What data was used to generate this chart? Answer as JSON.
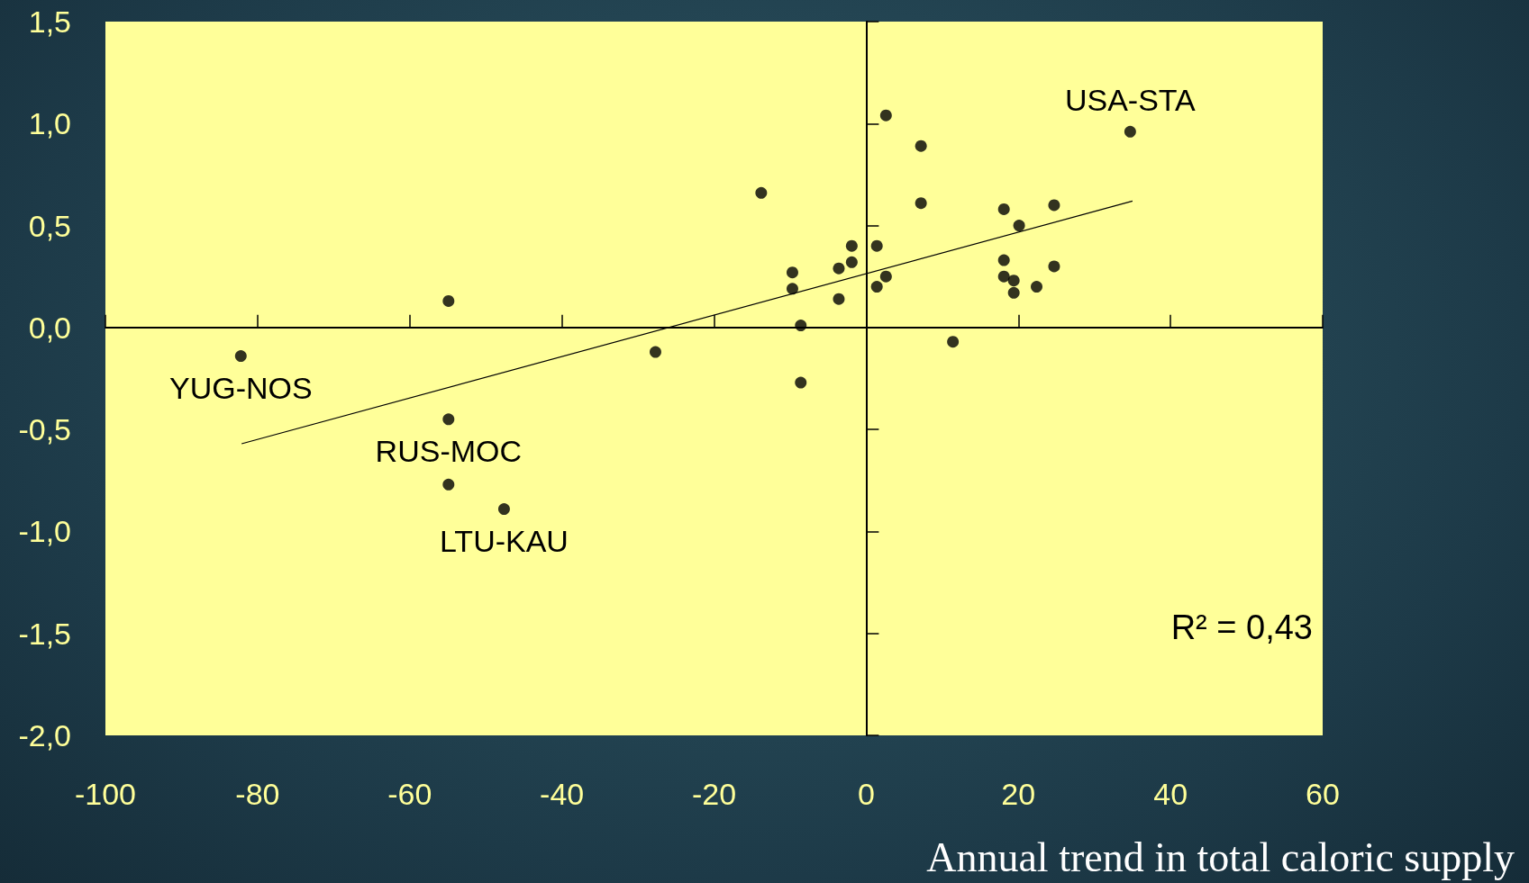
{
  "chart_data": {
    "type": "scatter",
    "xlabel": "Annual trend in total caloric supply",
    "xlim": [
      -100,
      60
    ],
    "xticks": [
      -100,
      -80,
      -60,
      -40,
      -20,
      0,
      20,
      40,
      60
    ],
    "ylim": [
      -2.0,
      1.5
    ],
    "yticks": [
      {
        "value": -2.0,
        "label": "-2,0"
      },
      {
        "value": -1.5,
        "label": "-1,5"
      },
      {
        "value": -1.0,
        "label": "-1,0"
      },
      {
        "value": -0.5,
        "label": "-0,5"
      },
      {
        "value": 0.0,
        "label": "0,0"
      },
      {
        "value": 0.5,
        "label": "0,5"
      },
      {
        "value": 1.0,
        "label": "1,0"
      },
      {
        "value": 1.5,
        "label": "1,5"
      }
    ],
    "marker": "circle",
    "series": [
      {
        "color": "#000000",
        "x": [
          -82.2,
          -54.9,
          -54.9,
          -54.9,
          -47.6,
          -27.7,
          -13.8,
          -9.7,
          -9.7,
          -8.6,
          -8.6,
          -3.6,
          -3.6,
          -1.9,
          -1.9,
          1.4,
          1.4,
          2.6,
          2.6,
          7.2,
          7.2,
          11.4,
          18.1,
          18.1,
          18.1,
          19.4,
          19.4,
          20.1,
          22.4,
          24.7,
          24.7,
          34.7
        ],
        "values": [
          -0.14,
          0.13,
          -0.45,
          -0.77,
          -0.89,
          -0.12,
          0.66,
          0.27,
          0.19,
          0.01,
          -0.27,
          0.29,
          0.14,
          0.4,
          0.32,
          0.4,
          0.2,
          0.25,
          1.04,
          0.89,
          0.61,
          -0.07,
          0.58,
          0.33,
          0.25,
          0.23,
          0.17,
          0.5,
          0.2,
          0.6,
          0.3,
          0.96
        ]
      },
      {
        "type": "line",
        "color": "#000000",
        "marker": "none",
        "x": [
          -82.1,
          35.0
        ],
        "values": [
          -0.57,
          0.62
        ]
      }
    ],
    "annotations": [
      {
        "text": "YUG-NOS",
        "x": -82.2,
        "y": -0.14
      },
      {
        "text": "RUS-MOC",
        "x": -54.9,
        "y": -0.45
      },
      {
        "text": "LTU-KAU",
        "x": -47.6,
        "y": -0.89
      },
      {
        "text": "USA-STA",
        "x": 34.7,
        "y": 0.96
      },
      "R² = 0,43"
    ]
  }
}
